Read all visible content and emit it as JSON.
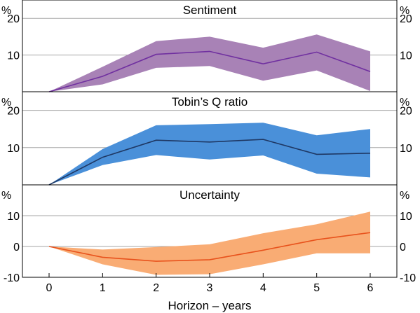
{
  "chart_data": {
    "type": "area",
    "xlabel": "Horizon – years",
    "x_ticks": [
      "0",
      "1",
      "2",
      "3",
      "4",
      "5",
      "6"
    ],
    "panels": [
      {
        "title": "Sentiment",
        "unit": "%",
        "ylim": [
          0,
          25
        ],
        "ticks": [
          10,
          20
        ],
        "band_color": "#a882b6",
        "line_color": "#7030a0",
        "x": [
          0,
          1,
          2,
          3,
          4,
          5,
          6
        ],
        "mid": [
          0,
          4.2,
          10.2,
          11.0,
          7.6,
          10.8,
          5.5
        ],
        "low": [
          0,
          2.0,
          6.5,
          7.0,
          3.0,
          5.8,
          0.2
        ],
        "high": [
          0,
          6.8,
          13.8,
          15.0,
          12.0,
          15.6,
          11.0
        ]
      },
      {
        "title": "Tobin’s Q ratio",
        "unit": "%",
        "ylim": [
          0,
          25
        ],
        "ticks": [
          10,
          20
        ],
        "band_color": "#4a90d9",
        "line_color": "#1f3864",
        "x": [
          0,
          1,
          2,
          3,
          4,
          5,
          6
        ],
        "mid": [
          0,
          7.4,
          12.0,
          11.5,
          12.2,
          8.2,
          8.5
        ],
        "low": [
          0,
          5.3,
          8.0,
          6.8,
          7.9,
          3.0,
          2.0
        ],
        "high": [
          0,
          9.6,
          16.0,
          16.3,
          16.7,
          13.3,
          15.0
        ]
      },
      {
        "title": "Uncertainty",
        "unit": "%",
        "ylim": [
          -10,
          20
        ],
        "ticks": [
          -10,
          0,
          10
        ],
        "band_color": "#f9ac74",
        "line_color": "#e8521c",
        "x": [
          0,
          1,
          2,
          3,
          4,
          5,
          6
        ],
        "mid": [
          0,
          -3.5,
          -4.8,
          -4.3,
          -1.2,
          2.2,
          4.5
        ],
        "low": [
          0,
          -5.8,
          -9.2,
          -9.0,
          -5.8,
          -2.2,
          -2.2
        ],
        "high": [
          0,
          -1.0,
          -0.2,
          0.7,
          4.3,
          7.2,
          11.3
        ]
      }
    ]
  }
}
